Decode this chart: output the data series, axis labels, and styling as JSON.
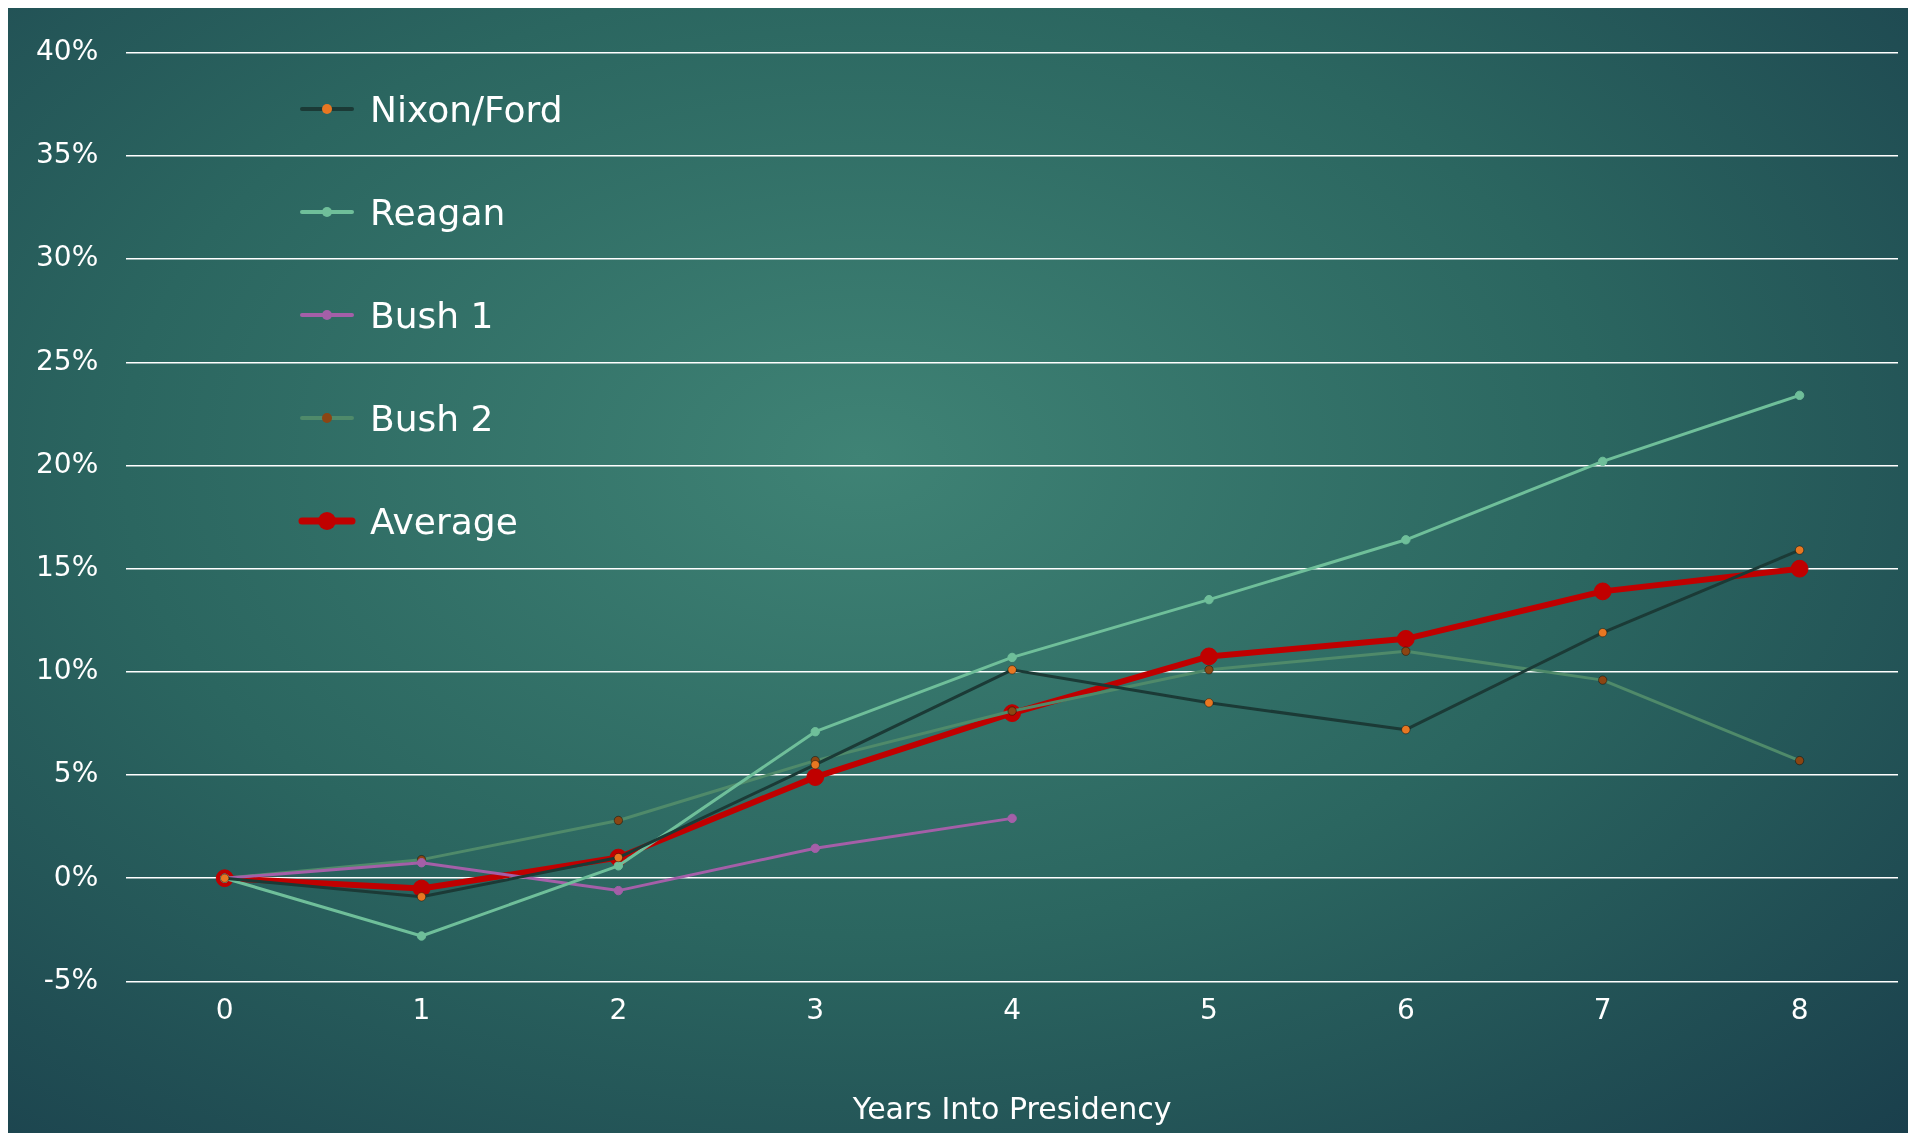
{
  "chart_data": {
    "type": "line",
    "xlabel": "Years Into Presidency",
    "x": [
      0,
      1,
      2,
      3,
      4,
      5,
      6,
      7,
      8
    ],
    "xlim": [
      -0.5,
      8.5
    ],
    "xticks": [
      0,
      1,
      2,
      3,
      4,
      5,
      6,
      7,
      8
    ],
    "ylim": [
      -5,
      40
    ],
    "yticks": [
      {
        "value": -5,
        "label": "-5%"
      },
      {
        "value": 0,
        "label": "0%"
      },
      {
        "value": 5,
        "label": "5%"
      },
      {
        "value": 10,
        "label": "10%"
      },
      {
        "value": 15,
        "label": "15%"
      },
      {
        "value": 20,
        "label": "20%"
      },
      {
        "value": 25,
        "label": "25%"
      },
      {
        "value": 30,
        "label": "30%"
      },
      {
        "value": 35,
        "label": "35%"
      },
      {
        "value": 40,
        "label": "40%"
      }
    ],
    "grid": "y",
    "legend": "top left",
    "marker": "circle",
    "line_style": "solid",
    "series": [
      {
        "name": "Nixon/Ford",
        "color": "#1b3a36",
        "colors": [
          "#e87722",
          "#e87722",
          "#e87722",
          "#e87722",
          "#e87722",
          "#e87722",
          "#e87722",
          "#e87722",
          "#e87722"
        ],
        "values": [
          0,
          -0.9,
          1.0,
          5.5,
          10.1,
          8.5,
          7.2,
          11.9,
          15.9
        ]
      },
      {
        "name": "Reagan",
        "color": "#6fbf9a",
        "values": [
          0,
          -2.8,
          0.6,
          7.1,
          10.7,
          13.5,
          16.4,
          20.2,
          23.4
        ]
      },
      {
        "name": "Bush 1",
        "color": "#a45fa8",
        "values": [
          0,
          0.75,
          -0.6,
          1.45,
          2.9,
          null,
          null,
          null,
          null
        ]
      },
      {
        "name": "Bush 2",
        "color": "#4f8a6a",
        "colors": [
          "#8b4513",
          "#8b4513",
          "#8b4513",
          "#8b4513",
          "#8b4513",
          "#8b4513",
          "#8b4513",
          "#8b4513",
          "#8b4513"
        ],
        "values": [
          0,
          0.9,
          2.8,
          5.7,
          8.1,
          10.1,
          11.0,
          9.6,
          5.7
        ]
      },
      {
        "name": "Average",
        "color": "#c00000",
        "values": [
          0,
          -0.5,
          1.0,
          4.9,
          8.0,
          10.75,
          11.6,
          13.9,
          15.0
        ]
      }
    ]
  }
}
